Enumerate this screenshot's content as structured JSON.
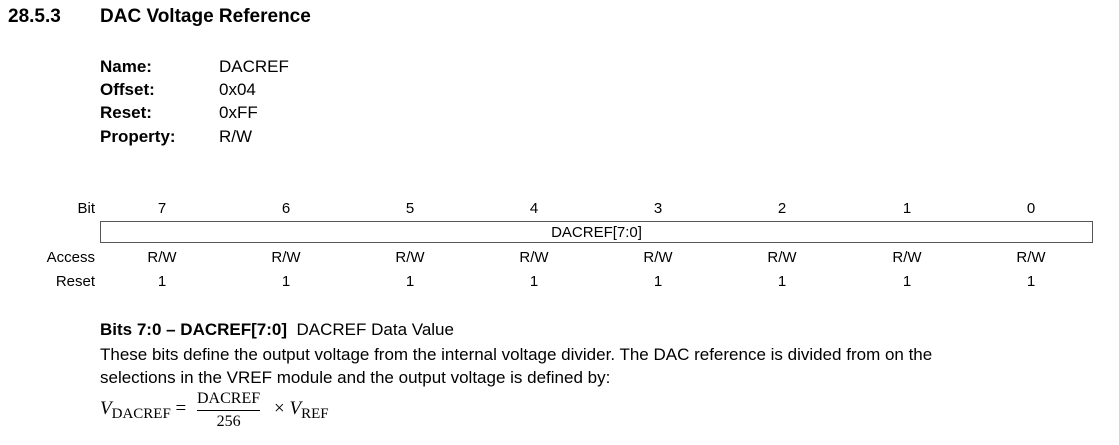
{
  "section": {
    "number": "28.5.3",
    "title": "DAC Voltage Reference"
  },
  "properties": [
    {
      "label": "Name:",
      "value": "DACREF"
    },
    {
      "label": "Offset:",
      "value": "0x04"
    },
    {
      "label": "Reset:",
      "value": "0xFF"
    },
    {
      "label": "Property:",
      "value": "R/W"
    }
  ],
  "register": {
    "row_labels": {
      "bit": "Bit",
      "access": "Access",
      "reset": "Reset"
    },
    "bits": [
      "7",
      "6",
      "5",
      "4",
      "3",
      "2",
      "1",
      "0"
    ],
    "field": "DACREF[7:0]",
    "access": [
      "R/W",
      "R/W",
      "R/W",
      "R/W",
      "R/W",
      "R/W",
      "R/W",
      "R/W"
    ],
    "reset": [
      "1",
      "1",
      "1",
      "1",
      "1",
      "1",
      "1",
      "1"
    ]
  },
  "description": {
    "bits_label": "Bits 7:0 – DACREF[7:0]",
    "bits_name": "DACREF Data Value",
    "line1": "These bits define the output voltage from the internal voltage divider. The DAC reference is divided from on the",
    "line2": "selections in the VREF module and the output voltage is defined by:"
  },
  "formula": {
    "lhs_var": "V",
    "lhs_sub": "DACREF",
    "equals": "=",
    "numerator": "DACREF",
    "denominator": "256",
    "times": "×",
    "rhs_var": "V",
    "rhs_sub": "REF"
  }
}
